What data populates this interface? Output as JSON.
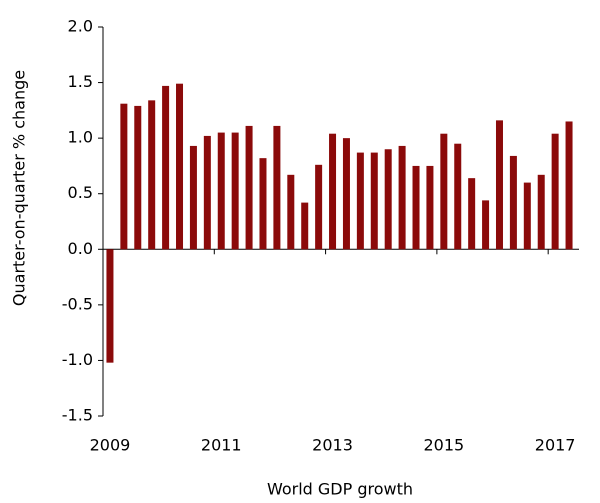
{
  "chart_data": {
    "type": "bar",
    "x_label": "World GDP growth",
    "y_label": "Quarter-on-quarter % change",
    "categories": [
      "2009",
      null,
      null,
      null,
      null,
      null,
      null,
      null,
      "2011",
      null,
      null,
      null,
      null,
      null,
      null,
      null,
      "2013",
      null,
      null,
      null,
      null,
      null,
      null,
      null,
      "2015",
      null,
      null,
      null,
      null,
      null,
      null,
      null,
      "2017",
      null
    ],
    "values": [
      -1.02,
      1.31,
      1.29,
      1.34,
      1.47,
      1.49,
      0.93,
      1.02,
      1.05,
      1.05,
      1.11,
      0.82,
      1.11,
      0.67,
      0.42,
      0.76,
      1.04,
      1.0,
      0.87,
      0.87,
      0.9,
      0.93,
      0.75,
      0.75,
      1.04,
      0.95,
      0.64,
      0.44,
      1.16,
      0.84,
      0.6,
      0.67,
      1.04,
      1.15
    ],
    "color": "#8b0a0a",
    "ylim": [
      -1.5,
      2.0
    ],
    "yticks": [
      {
        "value": 2,
        "label": "2.0"
      },
      1.5,
      {
        "value": 1,
        "label": "1.0"
      },
      0.5,
      {
        "value": 0,
        "label": "0.0"
      },
      -0.5,
      {
        "value": -1,
        "label": "-1.0"
      },
      -1.5
    ],
    "grid": false
  }
}
